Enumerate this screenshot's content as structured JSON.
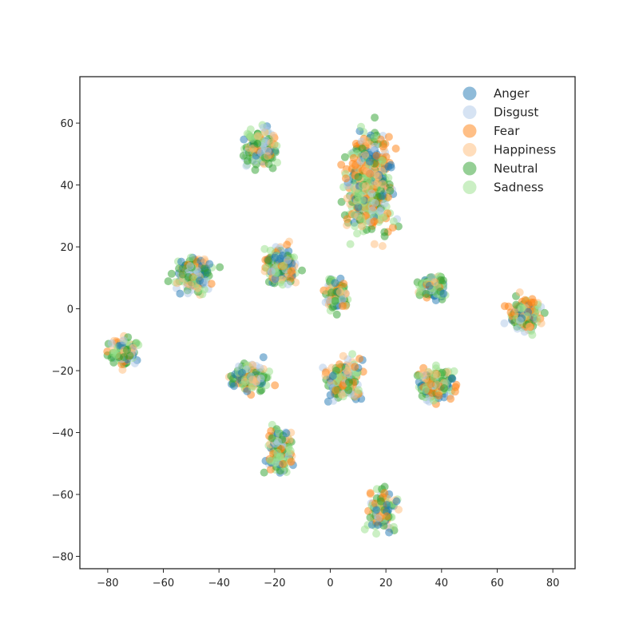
{
  "chart_data": {
    "type": "scatter",
    "title": "",
    "xlabel": "",
    "ylabel": "",
    "xlim": [
      -90,
      88
    ],
    "ylim": [
      -84,
      75
    ],
    "grid": false,
    "legend": "top-right",
    "xticks": [
      -80,
      -60,
      -40,
      -20,
      0,
      20,
      40,
      60,
      80
    ],
    "yticks": [
      -80,
      -60,
      -40,
      -20,
      0,
      20,
      40,
      60
    ],
    "xtick_labels": [
      "−80",
      "−60",
      "−40",
      "−20",
      "0",
      "20",
      "40",
      "60",
      "80"
    ],
    "ytick_labels": [
      "−80",
      "−60",
      "−40",
      "−20",
      "0",
      "20",
      "40",
      "60"
    ],
    "series": [
      {
        "name": "Anger",
        "color": "#1f77b4"
      },
      {
        "name": "Disgust",
        "color": "#aec7e8"
      },
      {
        "name": "Fear",
        "color": "#ff7f0e"
      },
      {
        "name": "Happiness",
        "color": "#ffbb78"
      },
      {
        "name": "Neutral",
        "color": "#2ca02c"
      },
      {
        "name": "Sadness",
        "color": "#98df8a"
      }
    ],
    "clusters": [
      {
        "center": [
          -25,
          52
        ],
        "radius": [
          10,
          11
        ],
        "weights": [
          0.1,
          0.15,
          0.08,
          0.1,
          0.3,
          0.27
        ]
      },
      {
        "center": [
          14,
          40
        ],
        "radius": [
          14,
          27
        ],
        "weights": [
          0.12,
          0.1,
          0.22,
          0.18,
          0.15,
          0.23
        ]
      },
      {
        "center": [
          -49,
          11
        ],
        "radius": [
          11,
          10
        ],
        "weights": [
          0.15,
          0.1,
          0.12,
          0.12,
          0.26,
          0.25
        ]
      },
      {
        "center": [
          -18,
          14
        ],
        "radius": [
          10,
          11
        ],
        "weights": [
          0.12,
          0.12,
          0.18,
          0.13,
          0.22,
          0.23
        ]
      },
      {
        "center": [
          37,
          7
        ],
        "radius": [
          10,
          7
        ],
        "weights": [
          0.18,
          0.12,
          0.12,
          0.1,
          0.23,
          0.25
        ]
      },
      {
        "center": [
          70,
          -2
        ],
        "radius": [
          10,
          10
        ],
        "weights": [
          0.12,
          0.1,
          0.18,
          0.15,
          0.22,
          0.23
        ]
      },
      {
        "center": [
          -74,
          -14
        ],
        "radius": [
          9,
          9
        ],
        "weights": [
          0.1,
          0.1,
          0.18,
          0.14,
          0.24,
          0.24
        ]
      },
      {
        "center": [
          -29,
          -22
        ],
        "radius": [
          11,
          8
        ],
        "weights": [
          0.1,
          0.12,
          0.15,
          0.13,
          0.25,
          0.25
        ]
      },
      {
        "center": [
          5,
          -23
        ],
        "radius": [
          11,
          12
        ],
        "weights": [
          0.14,
          0.12,
          0.18,
          0.14,
          0.2,
          0.22
        ]
      },
      {
        "center": [
          38,
          -24
        ],
        "radius": [
          11,
          10
        ],
        "weights": [
          0.14,
          0.12,
          0.15,
          0.14,
          0.22,
          0.23
        ]
      },
      {
        "center": [
          -18,
          -45
        ],
        "radius": [
          8,
          12
        ],
        "weights": [
          0.1,
          0.12,
          0.18,
          0.13,
          0.22,
          0.25
        ]
      },
      {
        "center": [
          18,
          -65
        ],
        "radius": [
          9,
          11
        ],
        "weights": [
          0.12,
          0.14,
          0.15,
          0.14,
          0.2,
          0.25
        ]
      },
      {
        "center": [
          2,
          5
        ],
        "radius": [
          7,
          10
        ],
        "weights": [
          0.1,
          0.15,
          0.15,
          0.15,
          0.15,
          0.3
        ]
      }
    ]
  }
}
